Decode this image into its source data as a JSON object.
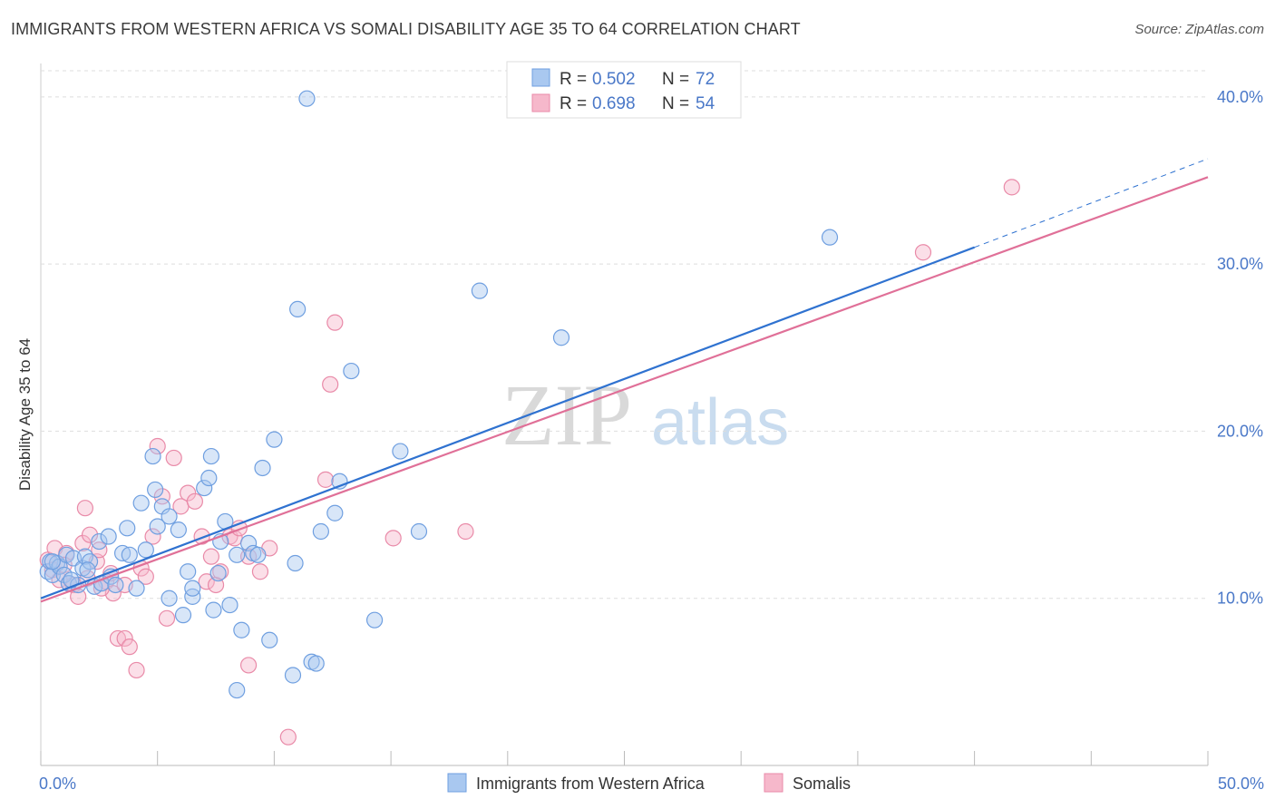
{
  "title": "IMMIGRANTS FROM WESTERN AFRICA VS SOMALI DISABILITY AGE 35 TO 64 CORRELATION CHART",
  "source": "Source: ZipAtlas.com",
  "watermark": {
    "part1": "ZIP",
    "part2": "atlas"
  },
  "legend": {
    "rows": [
      {
        "r_label": "R =",
        "r_value": "0.502",
        "n_label": "N =",
        "n_value": "72"
      },
      {
        "r_label": "R =",
        "r_value": "0.698",
        "n_label": "N =",
        "n_value": "54"
      }
    ]
  },
  "colors": {
    "blue_fill": "#a9c8f0",
    "blue_stroke": "#6f9fe0",
    "blue_line": "#2f72d0",
    "pink_fill": "#f6b8cb",
    "pink_stroke": "#e98aa8",
    "pink_line": "#e07098",
    "grid": "#dddddd",
    "tick_text": "#4a78c8"
  },
  "chart_data": {
    "type": "scatter",
    "xlabel": "",
    "ylabel": "Disability Age 35 to 64",
    "xlim": [
      0,
      50
    ],
    "ylim": [
      0,
      42
    ],
    "x_tick_labels": [
      {
        "value": 0,
        "label": "0.0%"
      },
      {
        "value": 50,
        "label": "50.0%"
      }
    ],
    "x_minor_ticks": [
      0,
      5,
      10,
      15,
      20,
      25,
      30,
      35,
      40,
      45,
      50
    ],
    "y_ticks": [
      {
        "value": 10,
        "label": "10.0%"
      },
      {
        "value": 20,
        "label": "20.0%"
      },
      {
        "value": 30,
        "label": "30.0%"
      },
      {
        "value": 40,
        "label": "40.0%"
      }
    ],
    "grid": "horizontal dashed",
    "legend_position": "top-center",
    "series": [
      {
        "name": "Immigrants from Western Africa",
        "color": "#a9c8f0",
        "trendline": {
          "x0": 0,
          "y0": 10.0,
          "x1": 40,
          "y1": 31.0,
          "dashed_to_x": 50,
          "dashed_to_y": 36.3
        },
        "points": [
          [
            0.3,
            11.6
          ],
          [
            0.4,
            12.2
          ],
          [
            0.5,
            11.4
          ],
          [
            0.7,
            12.1
          ],
          [
            0.8,
            11.9
          ],
          [
            1.0,
            11.4
          ],
          [
            1.1,
            12.6
          ],
          [
            1.2,
            10.9
          ],
          [
            1.4,
            12.4
          ],
          [
            1.6,
            10.8
          ],
          [
            1.8,
            11.8
          ],
          [
            1.9,
            12.5
          ],
          [
            2.1,
            12.2
          ],
          [
            2.3,
            10.7
          ],
          [
            2.5,
            13.4
          ],
          [
            2.6,
            10.9
          ],
          [
            2.9,
            13.7
          ],
          [
            3.0,
            11.3
          ],
          [
            3.2,
            10.8
          ],
          [
            3.5,
            12.7
          ],
          [
            3.7,
            14.2
          ],
          [
            3.8,
            12.6
          ],
          [
            4.1,
            10.6
          ],
          [
            4.3,
            15.7
          ],
          [
            4.8,
            18.5
          ],
          [
            4.9,
            16.5
          ],
          [
            5.0,
            14.3
          ],
          [
            5.2,
            15.5
          ],
          [
            5.5,
            14.9
          ],
          [
            5.5,
            10.0
          ],
          [
            5.9,
            14.1
          ],
          [
            6.1,
            9.0
          ],
          [
            6.3,
            11.6
          ],
          [
            6.5,
            10.1
          ],
          [
            6.5,
            10.6
          ],
          [
            7.0,
            16.6
          ],
          [
            7.2,
            17.2
          ],
          [
            7.3,
            18.5
          ],
          [
            7.4,
            9.3
          ],
          [
            7.6,
            11.5
          ],
          [
            7.7,
            13.4
          ],
          [
            7.9,
            14.6
          ],
          [
            8.1,
            9.6
          ],
          [
            8.4,
            12.6
          ],
          [
            8.6,
            8.1
          ],
          [
            8.9,
            13.3
          ],
          [
            9.1,
            12.7
          ],
          [
            9.3,
            12.6
          ],
          [
            9.5,
            17.8
          ],
          [
            9.8,
            7.5
          ],
          [
            10.0,
            19.5
          ],
          [
            10.8,
            5.4
          ],
          [
            10.9,
            12.1
          ],
          [
            11.0,
            27.3
          ],
          [
            11.4,
            39.9
          ],
          [
            11.6,
            6.2
          ],
          [
            11.8,
            6.1
          ],
          [
            12.0,
            14.0
          ],
          [
            12.6,
            15.1
          ],
          [
            12.8,
            17.0
          ],
          [
            13.3,
            23.6
          ],
          [
            14.3,
            8.7
          ],
          [
            15.4,
            18.8
          ],
          [
            16.2,
            14.0
          ],
          [
            8.4,
            4.5
          ],
          [
            18.8,
            28.4
          ],
          [
            22.3,
            25.6
          ],
          [
            33.8,
            31.6
          ],
          [
            0.5,
            12.2
          ],
          [
            1.3,
            11.1
          ],
          [
            2.0,
            11.7
          ],
          [
            4.5,
            12.9
          ]
        ]
      },
      {
        "name": "Somalis",
        "color": "#f6b8cb",
        "trendline": {
          "x0": 0,
          "y0": 9.8,
          "x1": 50,
          "y1": 35.2
        },
        "points": [
          [
            0.3,
            12.3
          ],
          [
            0.5,
            11.7
          ],
          [
            0.6,
            13.0
          ],
          [
            0.8,
            11.1
          ],
          [
            1.1,
            12.7
          ],
          [
            1.2,
            10.9
          ],
          [
            1.4,
            10.8
          ],
          [
            1.6,
            10.1
          ],
          [
            1.8,
            13.3
          ],
          [
            1.9,
            15.4
          ],
          [
            2.0,
            11.2
          ],
          [
            2.1,
            13.8
          ],
          [
            2.4,
            12.2
          ],
          [
            2.5,
            12.9
          ],
          [
            2.8,
            11.0
          ],
          [
            3.0,
            11.5
          ],
          [
            3.1,
            10.3
          ],
          [
            3.3,
            7.6
          ],
          [
            3.6,
            7.6
          ],
          [
            3.6,
            10.8
          ],
          [
            3.8,
            7.1
          ],
          [
            4.1,
            5.7
          ],
          [
            4.3,
            11.8
          ],
          [
            4.5,
            11.3
          ],
          [
            4.8,
            13.7
          ],
          [
            5.0,
            19.1
          ],
          [
            5.2,
            16.1
          ],
          [
            5.4,
            8.8
          ],
          [
            5.7,
            18.4
          ],
          [
            6.0,
            15.5
          ],
          [
            6.3,
            16.3
          ],
          [
            6.6,
            15.8
          ],
          [
            6.9,
            13.7
          ],
          [
            7.1,
            11.0
          ],
          [
            7.3,
            12.5
          ],
          [
            7.5,
            10.8
          ],
          [
            7.7,
            11.6
          ],
          [
            8.1,
            13.7
          ],
          [
            8.3,
            13.6
          ],
          [
            8.5,
            14.2
          ],
          [
            8.9,
            6.0
          ],
          [
            8.9,
            12.5
          ],
          [
            9.4,
            11.6
          ],
          [
            9.8,
            13.0
          ],
          [
            10.6,
            1.7
          ],
          [
            12.2,
            17.1
          ],
          [
            12.4,
            22.8
          ],
          [
            12.6,
            26.5
          ],
          [
            15.1,
            13.6
          ],
          [
            18.2,
            14.0
          ],
          [
            37.8,
            30.7
          ],
          [
            41.6,
            34.6
          ],
          [
            1.0,
            12.0
          ],
          [
            2.6,
            10.6
          ]
        ]
      }
    ]
  },
  "bottom_legend": [
    {
      "label": "Immigrants from Western Africa"
    },
    {
      "label": "Somalis"
    }
  ]
}
